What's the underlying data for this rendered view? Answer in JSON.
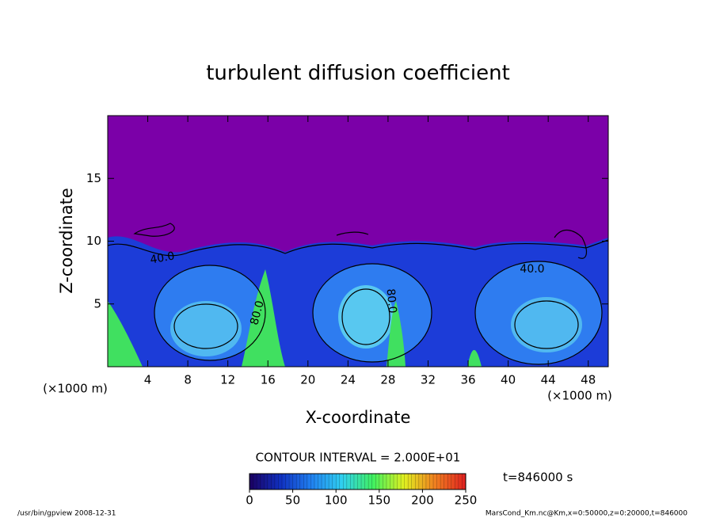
{
  "chart_data": {
    "type": "contour",
    "title": "turbulent diffusion coefficient",
    "x_label": "X-coordinate",
    "y_label": "Z-coordinate",
    "x_unit": "(×1000 m)",
    "y_unit": "(×1000 m)",
    "xlim": [
      0,
      50
    ],
    "xticks": [
      4,
      8,
      12,
      16,
      20,
      24,
      28,
      32,
      36,
      40,
      44,
      48
    ],
    "ylim": [
      0,
      20
    ],
    "yticks": [
      5,
      10,
      15
    ],
    "contour_labels": [
      {
        "value": 40,
        "label": "40.0"
      },
      {
        "value": 40,
        "label": "40.0"
      },
      {
        "value": 80,
        "label": "80.0"
      },
      {
        "value": 80,
        "label": "80.0"
      }
    ],
    "contour_interval_label": "CONTOUR INTERVAL = 2.000E+01",
    "colorbar": {
      "lim": [
        0,
        250
      ],
      "ticks": [
        0,
        50,
        100,
        150,
        200,
        250
      ],
      "colors": [
        "#1a0060",
        "#1030c0",
        "#2080f0",
        "#30d0f0",
        "#40f060",
        "#e0f020",
        "#f08020",
        "#e02020"
      ]
    },
    "time_label": "t=846000 s",
    "footer_left": "/usr/bin/gpview   2008-12-31",
    "footer_right": "MarsCond_Km.nc@Km,x=0:50000,z=0:20000,t=846000"
  }
}
